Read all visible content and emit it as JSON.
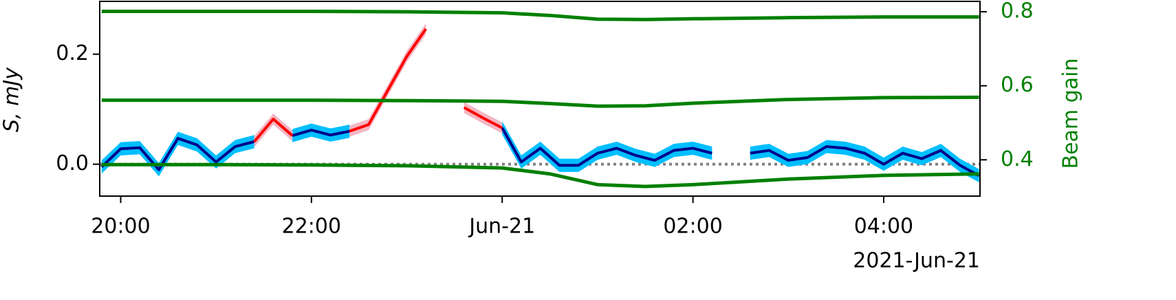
{
  "chart_data": {
    "type": "line",
    "ylabel": "S, mJy",
    "y2label": "Beam gain",
    "x_offset_label": "2021-Jun-21",
    "xlim": [
      -4.22,
      5.01
    ],
    "ylim": [
      -0.058,
      0.296
    ],
    "y2lim": [
      0.302,
      0.828
    ],
    "xticks": [
      {
        "value": -4,
        "label": "20:00"
      },
      {
        "value": -2,
        "label": "22:00"
      },
      {
        "value": 0,
        "label": "Jun-21"
      },
      {
        "value": 2,
        "label": "02:00"
      },
      {
        "value": 4,
        "label": "04:00"
      }
    ],
    "yticks": [
      {
        "value": 0,
        "label": "0.0"
      },
      0.2
    ],
    "y2ticks": [
      0.4,
      0.6,
      0.8
    ],
    "reference_line": {
      "value": 0,
      "color": "#808080"
    },
    "x": [
      -4.2,
      -4.0,
      -3.8,
      -3.6,
      -3.4,
      -3.2,
      -3.0,
      -2.8,
      -2.6,
      -2.4,
      -2.2,
      -2.0,
      -1.8,
      -1.6,
      -1.4,
      -1.2,
      -1.0,
      -0.8,
      -0.6,
      -0.4,
      -0.2,
      0.0,
      0.2,
      0.4,
      0.6,
      0.8,
      1.0,
      1.2,
      1.4,
      1.6,
      1.8,
      2.0,
      2.2,
      2.4,
      2.6,
      2.8,
      3.0,
      3.2,
      3.4,
      3.6,
      3.8,
      4.0,
      4.2,
      4.4,
      4.6,
      4.8,
      5.0
    ],
    "series": [
      {
        "color": "#00008b",
        "band_color": "#00bfff",
        "error": 0.012,
        "values": [
          -0.005,
          0.028,
          0.03,
          -0.01,
          0.047,
          0.035,
          0.004,
          0.032,
          0.041,
          null,
          0.052,
          0.062,
          0.053,
          0.06,
          null,
          null,
          null,
          null,
          null,
          null,
          null,
          0.066,
          0.004,
          0.029,
          -0.002,
          -0.002,
          0.02,
          0.029,
          0.016,
          0.007,
          0.025,
          0.029,
          0.02,
          null,
          0.02,
          0.025,
          0.007,
          0.012,
          0.032,
          0.029,
          0.02,
          0.0,
          0.02,
          0.01,
          0.025,
          -0.002,
          -0.021
        ]
      },
      {
        "color": "#ff0000",
        "band_color": "#f4b6c2",
        "error": 0.01,
        "values": [
          null,
          null,
          null,
          null,
          null,
          null,
          null,
          null,
          0.041,
          0.082,
          0.052,
          null,
          null,
          0.06,
          0.072,
          0.134,
          0.196,
          0.246,
          null,
          0.103,
          0.084,
          0.066,
          null,
          null,
          null,
          null,
          null,
          null,
          null,
          null,
          null,
          null,
          null,
          null,
          null,
          null,
          null,
          null,
          null,
          null,
          null,
          null,
          null,
          null,
          null,
          null,
          null
        ]
      }
    ],
    "gain_x": [
      -4.2,
      -3,
      -2,
      -1,
      0,
      0.5,
      1,
      1.5,
      2,
      3,
      4,
      5
    ],
    "gain_series": [
      {
        "axis": "y2",
        "color": "#008000",
        "values": [
          0.801,
          0.801,
          0.801,
          0.8,
          0.797,
          0.79,
          0.78,
          0.779,
          0.781,
          0.784,
          0.786,
          0.786
        ]
      },
      {
        "axis": "y2",
        "color": "#008000",
        "values": [
          0.561,
          0.561,
          0.561,
          0.56,
          0.558,
          0.552,
          0.545,
          0.546,
          0.553,
          0.563,
          0.568,
          0.569
        ]
      },
      {
        "axis": "y2",
        "color": "#008000",
        "values": [
          0.387,
          0.387,
          0.386,
          0.384,
          0.378,
          0.362,
          0.333,
          0.328,
          0.333,
          0.348,
          0.358,
          0.362
        ]
      }
    ]
  }
}
